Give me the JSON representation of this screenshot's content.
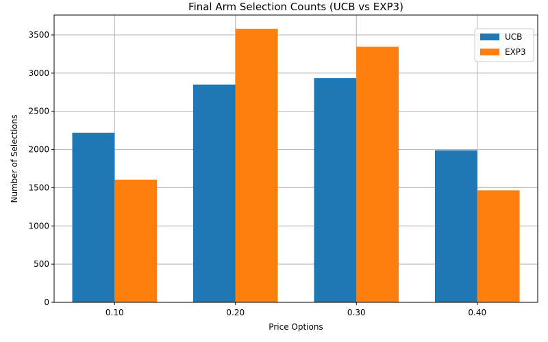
{
  "chart_data": {
    "type": "bar",
    "title": "Final Arm Selection Counts (UCB vs EXP3)",
    "xlabel": "Price Options",
    "ylabel": "Number of Selections",
    "categories": [
      "0.10",
      "0.20",
      "0.30",
      "0.40"
    ],
    "series": [
      {
        "name": "UCB",
        "color": "#1f77b4",
        "values": [
          2220,
          2850,
          2935,
          1990
        ]
      },
      {
        "name": "EXP3",
        "color": "#ff7f0e",
        "values": [
          1605,
          3580,
          3345,
          1465
        ]
      }
    ],
    "ylim": [
      0,
      3760
    ],
    "yticks": [
      0,
      500,
      1000,
      1500,
      2000,
      2500,
      3000,
      3500
    ],
    "grid": true,
    "legend_position": "top-right"
  }
}
